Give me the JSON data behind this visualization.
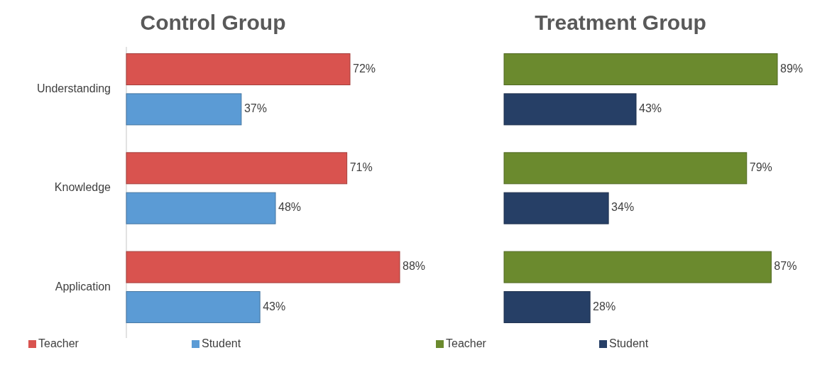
{
  "chart_data": [
    {
      "type": "bar",
      "orientation": "horizontal",
      "title": "Control Group",
      "categories": [
        "Understanding",
        "Knowledge",
        "Application"
      ],
      "legend": "bottom",
      "series": [
        {
          "name": "Teacher",
          "color": "#d9534f",
          "values": [
            72,
            71,
            88
          ],
          "value_labels": [
            "72%",
            "71%",
            "88%"
          ]
        },
        {
          "name": "Student",
          "color": "#5b9bd5",
          "values": [
            37,
            48,
            43
          ],
          "value_labels": [
            "37%",
            "48%",
            "43%"
          ]
        }
      ]
    },
    {
      "type": "bar",
      "orientation": "horizontal",
      "title": "Treatment Group",
      "categories": [
        null,
        null,
        null
      ],
      "legend": "bottom",
      "series": [
        {
          "name": "Teacher",
          "color": "#6b8a2e",
          "values": [
            89,
            79,
            87
          ],
          "value_labels": [
            "89%",
            "79%",
            "87%"
          ]
        },
        {
          "name": "Student",
          "color": "#263f66",
          "values": [
            43,
            34,
            28
          ],
          "value_labels": [
            "43%",
            "34%",
            "28%"
          ]
        }
      ]
    }
  ]
}
